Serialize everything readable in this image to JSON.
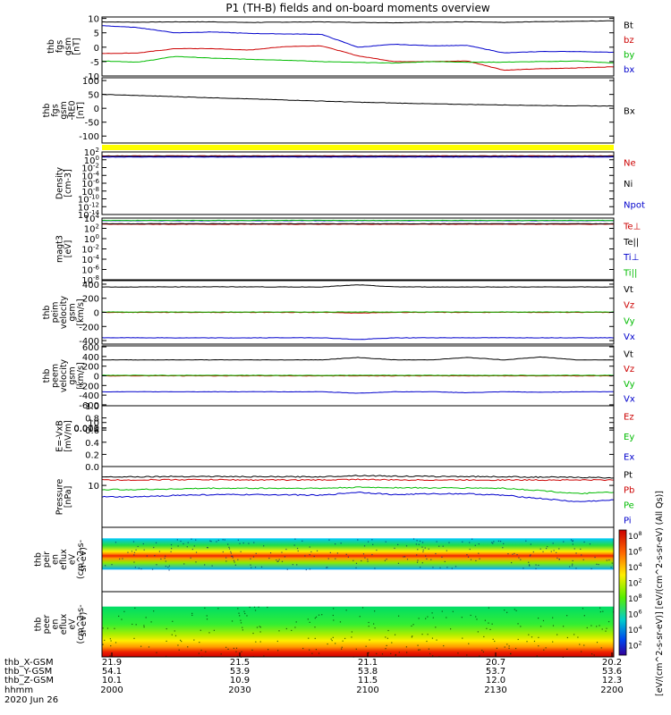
{
  "title": "P1 (TH-B) fields and on-board moments overview",
  "chart_data": [
    {
      "type": "line",
      "ylabel": [
        "thb",
        "fgs",
        "gsm",
        "[nT]"
      ],
      "yticks": [
        10,
        5,
        0,
        -5,
        -10
      ],
      "ylim": [
        -10,
        10.5
      ],
      "series": [
        {
          "name": "Bt",
          "color": "#000000",
          "values": [
            8.8,
            8.7,
            8.8,
            8.8,
            8.6,
            8.7,
            8.8,
            8.6,
            8.5,
            8.7,
            8.8,
            8.6,
            8.9,
            9.0,
            9.2
          ]
        },
        {
          "name": "bz",
          "color": "#cc0000",
          "values": [
            -2.2,
            -2.0,
            -0.5,
            -0.5,
            -1.0,
            0.2,
            0.5,
            -3.0,
            -5.0,
            -5.0,
            -4.8,
            -8.0,
            -7.5,
            -7.2,
            -6.8
          ]
        },
        {
          "name": "by",
          "color": "#00bb00",
          "values": [
            -4.8,
            -5.2,
            -3.2,
            -3.8,
            -4.2,
            -4.5,
            -5.0,
            -5.3,
            -5.5,
            -5.0,
            -5.2,
            -5.2,
            -5.0,
            -4.8,
            -5.5
          ]
        },
        {
          "name": "bx",
          "color": "#0000cc",
          "values": [
            7.5,
            6.8,
            5.0,
            5.3,
            4.8,
            4.6,
            4.5,
            0.0,
            1.0,
            0.5,
            0.6,
            -2.0,
            -1.5,
            -1.5,
            -1.8
          ]
        }
      ]
    },
    {
      "type": "line",
      "ylabel": [
        "thb",
        "fgs",
        "gsm",
        "-RE0",
        "[nT]"
      ],
      "yticks": [
        100,
        50,
        0,
        -50,
        -100
      ],
      "ylim": [
        -125,
        110
      ],
      "series": [
        {
          "name": "Bx",
          "color": "#000000",
          "values": [
            50,
            46,
            42,
            38,
            34,
            30,
            26,
            22,
            19,
            16,
            14,
            12,
            10,
            9,
            8
          ]
        }
      ]
    },
    {
      "type": "line",
      "ylabel": [
        "Density",
        "[cm-3]"
      ],
      "yticks": [
        "10^2",
        "10^0",
        "10^-2",
        "10^-4",
        "10^-6",
        "10^-8",
        "10^-10",
        "10^-12",
        "10^-14"
      ],
      "ylim": [
        -14,
        2
      ],
      "series": [
        {
          "name": "Ne",
          "color": "#cc0000",
          "values": [
            1.0,
            1.0,
            1.0,
            1.0,
            1.0,
            1.0,
            1.0,
            1.0,
            1.0,
            1.0,
            1.0,
            1.0,
            1.0,
            1.0,
            1.0
          ]
        },
        {
          "name": "Ni",
          "color": "#000000",
          "values": [
            0.9,
            0.9,
            0.9,
            0.9,
            0.9,
            0.9,
            0.9,
            0.9,
            0.9,
            0.9,
            0.9,
            0.9,
            0.9,
            0.9,
            0.9
          ]
        },
        {
          "name": "Npot",
          "color": "#0000cc",
          "values": [
            0.7,
            0.7,
            0.7,
            0.7,
            0.7,
            0.7,
            0.7,
            0.7,
            0.7,
            0.7,
            0.7,
            0.7,
            0.7,
            0.7,
            0.7
          ]
        }
      ]
    },
    {
      "type": "line",
      "ylabel": [
        "magt3",
        "[eV]"
      ],
      "yticks": [
        "10^4",
        "10^2",
        "10^0",
        "10^-2",
        "10^-4",
        "10^-6",
        "10^-8"
      ],
      "ylim": [
        -8,
        4
      ],
      "series": [
        {
          "name": "Te⊥",
          "color": "#cc0000",
          "values": [
            2.8,
            2.8,
            2.8,
            2.8,
            2.8,
            2.8,
            2.8,
            2.8,
            2.8,
            2.8,
            2.8,
            2.8,
            2.8,
            2.8,
            2.8
          ]
        },
        {
          "name": "Te||",
          "color": "#000000",
          "values": [
            2.9,
            2.9,
            2.9,
            2.9,
            2.9,
            2.9,
            2.9,
            2.9,
            2.9,
            2.9,
            2.9,
            2.9,
            2.9,
            2.9,
            2.9
          ]
        },
        {
          "name": "Ti⊥",
          "color": "#0000cc",
          "values": [
            3.5,
            3.5,
            3.5,
            3.5,
            3.5,
            3.5,
            3.5,
            3.5,
            3.5,
            3.5,
            3.5,
            3.5,
            3.5,
            3.5,
            3.5
          ]
        },
        {
          "name": "Ti||",
          "color": "#00bb00",
          "values": [
            3.55,
            3.55,
            3.55,
            3.55,
            3.55,
            3.55,
            3.55,
            3.55,
            3.55,
            3.55,
            3.55,
            3.55,
            3.55,
            3.55,
            3.55
          ]
        }
      ]
    },
    {
      "type": "line",
      "ylabel": [
        "thb",
        "peim",
        "velocity",
        "gsm",
        "[km/s]"
      ],
      "yticks": [
        400,
        200,
        0,
        -200,
        -400
      ],
      "ylim": [
        -450,
        450
      ],
      "series": [
        {
          "name": "Vt",
          "color": "#000000",
          "values": [
            360,
            360,
            362,
            362,
            362,
            360,
            360,
            390,
            362,
            360,
            360,
            360,
            360,
            360,
            360
          ]
        },
        {
          "name": "Vz",
          "color": "#cc0000",
          "values": [
            0,
            0,
            0,
            0,
            0,
            0,
            0,
            -10,
            0,
            0,
            0,
            0,
            0,
            0,
            0
          ]
        },
        {
          "name": "Vy",
          "color": "#00bb00",
          "values": [
            5,
            5,
            5,
            5,
            5,
            5,
            5,
            5,
            5,
            5,
            5,
            5,
            5,
            5,
            5
          ]
        },
        {
          "name": "Vx",
          "color": "#0000cc",
          "values": [
            -360,
            -360,
            -362,
            -362,
            -362,
            -360,
            -360,
            -385,
            -362,
            -360,
            -360,
            -360,
            -360,
            -360,
            -360
          ]
        }
      ]
    },
    {
      "type": "line",
      "ylabel": [
        "thb",
        "peem",
        "velocity",
        "gsm",
        "[km/s]"
      ],
      "yticks": [
        600,
        400,
        200,
        0,
        -200,
        -400,
        -600
      ],
      "ylim": [
        -620,
        620
      ],
      "series": [
        {
          "name": "Vt",
          "color": "#000000",
          "values": [
            330,
            330,
            330,
            330,
            330,
            330,
            330,
            380,
            330,
            330,
            380,
            330,
            390,
            330,
            330
          ]
        },
        {
          "name": "Vz",
          "color": "#cc0000",
          "values": [
            0,
            0,
            0,
            0,
            0,
            0,
            0,
            0,
            0,
            0,
            0,
            0,
            0,
            0,
            0
          ]
        },
        {
          "name": "Vy",
          "color": "#00bb00",
          "values": [
            10,
            10,
            10,
            10,
            10,
            10,
            10,
            10,
            10,
            10,
            10,
            10,
            10,
            10,
            10
          ]
        },
        {
          "name": "Vx",
          "color": "#0000cc",
          "values": [
            -330,
            -330,
            -330,
            -330,
            -330,
            -330,
            -330,
            -360,
            -330,
            -330,
            -350,
            -330,
            -340,
            -330,
            -330
          ]
        }
      ]
    },
    {
      "type": "line",
      "ylabel": [
        "E=-VxB",
        "[mV/m]"
      ],
      "yticks": [
        "1.0",
        "0.8",
        "0.6",
        "0.4",
        "0.2",
        "0.0"
      ],
      "ylim": [
        0,
        1
      ],
      "series": [
        {
          "name": "Ez",
          "color": "#cc0000",
          "values": []
        },
        {
          "name": "Ey",
          "color": "#00bb00",
          "values": []
        },
        {
          "name": "Ex",
          "color": "#0000cc",
          "values": []
        }
      ]
    },
    {
      "type": "line",
      "ylabel": [
        "Pressure",
        "[nPa]"
      ],
      "yticks": [
        "0.010",
        "0.001"
      ],
      "ylim": [
        -3.1,
        -1.2
      ],
      "series": [
        {
          "name": "Pt",
          "color": "#000000",
          "values": [
            -1.52,
            -1.52,
            -1.51,
            -1.51,
            -1.52,
            -1.52,
            -1.52,
            -1.48,
            -1.5,
            -1.51,
            -1.51,
            -1.52,
            -1.53,
            -1.54,
            -1.55
          ]
        },
        {
          "name": "Pb",
          "color": "#cc0000",
          "values": [
            -1.62,
            -1.62,
            -1.61,
            -1.61,
            -1.62,
            -1.62,
            -1.62,
            -1.6,
            -1.62,
            -1.62,
            -1.62,
            -1.62,
            -1.62,
            -1.62,
            -1.62
          ]
        },
        {
          "name": "Pe",
          "color": "#00bb00",
          "values": [
            -1.92,
            -1.92,
            -1.9,
            -1.88,
            -1.88,
            -1.88,
            -1.88,
            -1.85,
            -1.86,
            -1.87,
            -1.87,
            -1.88,
            -1.95,
            -2.05,
            -2.0
          ]
        },
        {
          "name": "Pi",
          "color": "#0000cc",
          "values": [
            -2.15,
            -2.15,
            -2.1,
            -2.08,
            -2.08,
            -2.08,
            -2.1,
            -2.0,
            -2.08,
            -2.05,
            -2.05,
            -2.1,
            -2.2,
            -2.3,
            -2.25
          ]
        }
      ]
    },
    {
      "type": "heatmap",
      "ylabel": [
        "thb",
        "peir",
        "en",
        "eflux",
        "eV",
        "(cm^2-s-",
        "sr-eV)"
      ],
      "yticks": [
        "10000",
        "1000",
        "100",
        "10"
      ],
      "ylim": [
        0.8,
        4.3
      ],
      "band_log_range": [
        2.0,
        3.7
      ]
    },
    {
      "type": "heatmap",
      "ylabel": [
        "thb",
        "peer",
        "en",
        "eflux",
        "eV",
        "(cm^2-s-",
        "sr-eV)"
      ],
      "yticks": [
        "10000",
        "1000",
        "100",
        "10"
      ],
      "ylim": [
        0.8,
        4.3
      ],
      "band_log_range": [
        0.8,
        3.5
      ]
    }
  ],
  "colorbar": {
    "ticks": [
      "10^8",
      "10^6",
      "10^4",
      "10^2",
      "10^8",
      "10^6",
      "10^4",
      "10^2"
    ],
    "label": "[eV/(cm^2-s-sr-eV)] [eV/(cm^2-s-sr-eV) (All Qs)]"
  },
  "xaxis": {
    "rows": [
      {
        "label": "thb_X-GSM",
        "values": [
          "21.9",
          "21.5",
          "21.1",
          "20.7",
          "20.2"
        ]
      },
      {
        "label": "thb_Y-GSM",
        "values": [
          "54.1",
          "53.9",
          "53.8",
          "53.7",
          "53.6"
        ]
      },
      {
        "label": "thb_Z-GSM",
        "values": [
          "10.1",
          "10.9",
          "11.5",
          "12.0",
          "12.3"
        ]
      },
      {
        "label": "hhmm",
        "values": [
          "2000",
          "2030",
          "2100",
          "2130",
          "2200"
        ]
      }
    ],
    "date": "2020 Jun 26"
  }
}
